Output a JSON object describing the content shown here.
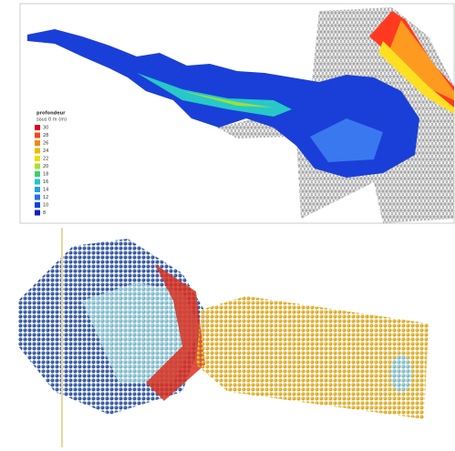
{
  "top_panel": {
    "legend": {
      "title": "profondeur",
      "subtitle": "sous 0 m (m)",
      "labels": [
        "30",
        "28",
        "26",
        "24",
        "22",
        "20",
        "18",
        "16",
        "14",
        "12",
        "10",
        "8"
      ]
    }
  }
}
